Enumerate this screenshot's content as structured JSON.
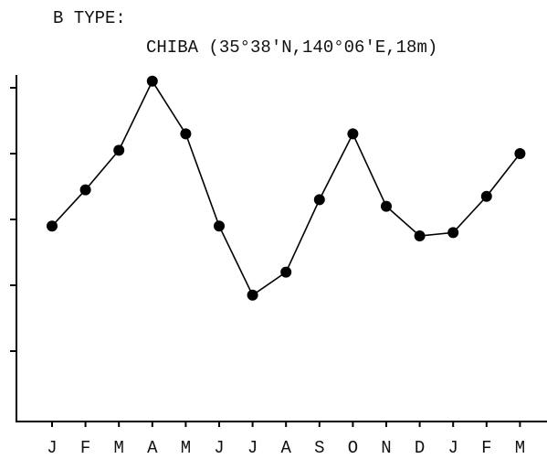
{
  "chart_data": {
    "type": "line",
    "title": "B TYPE:",
    "subtitle": "CHIBA (35°38'N,140°06'E,18m)",
    "categories": [
      "J",
      "F",
      "M",
      "A",
      "M",
      "J",
      "J",
      "A",
      "S",
      "O",
      "N",
      "D",
      "J",
      "F",
      "M"
    ],
    "values": [
      2.9,
      3.45,
      4.05,
      5.1,
      4.3,
      2.9,
      1.85,
      2.2,
      3.3,
      4.3,
      3.2,
      2.75,
      2.8,
      3.35,
      4.0
    ],
    "color": "#000000",
    "ylim": [
      0,
      5.2
    ],
    "yticks": [
      1,
      2,
      3,
      4,
      5
    ],
    "grid": false
  }
}
